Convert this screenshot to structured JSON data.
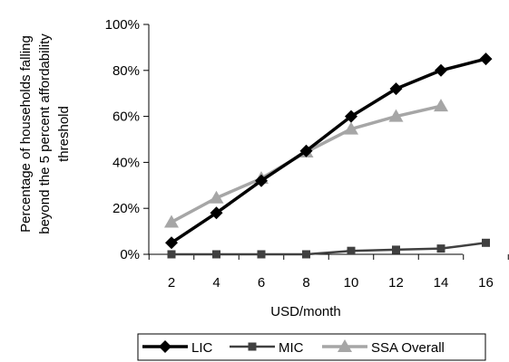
{
  "chart_data": {
    "type": "line",
    "title": "",
    "xlabel": "USD/month",
    "ylabel_lines": [
      "Percentage of households falling",
      "beyond the 5 percent affordability",
      "threshold"
    ],
    "x": [
      2,
      4,
      6,
      8,
      10,
      12,
      14,
      16
    ],
    "x_tick_labels": [
      "2",
      "4",
      "6",
      "8",
      "10",
      "12",
      "14",
      "16"
    ],
    "ylim": [
      0,
      100
    ],
    "y_ticks": [
      0,
      20,
      40,
      60,
      80,
      100
    ],
    "y_tick_labels": [
      "0%",
      "20%",
      "40%",
      "60%",
      "80%",
      "100%"
    ],
    "grid": false,
    "legend_position": "bottom",
    "series": [
      {
        "name": "LIC",
        "color": "#000000",
        "marker": "diamond",
        "values": [
          5,
          18,
          32,
          45,
          60,
          72,
          80,
          85
        ]
      },
      {
        "name": "MIC",
        "color": "#404040",
        "marker": "square",
        "values": [
          0,
          0,
          0,
          0,
          1.5,
          2,
          2.5,
          5
        ]
      },
      {
        "name": "SSA Overall",
        "color": "#a6a6a6",
        "marker": "triangle",
        "values": [
          14,
          24.5,
          33,
          44.5,
          54.5,
          60,
          64.5,
          null
        ]
      }
    ]
  }
}
